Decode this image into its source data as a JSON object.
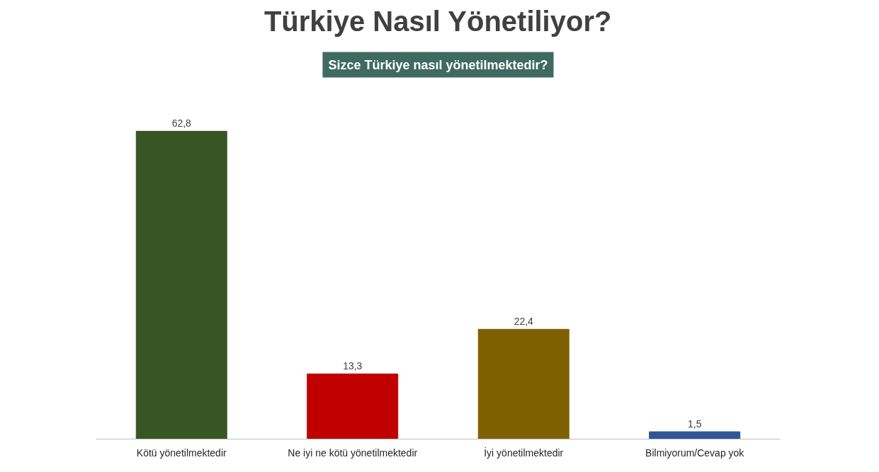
{
  "chart_data": {
    "type": "bar",
    "title": "Türkiye Nasıl Yönetiliyor?",
    "subtitle": "Sizce Türkiye nasıl yönetilmektedir?",
    "categories": [
      "Kötü yönetilmektedir",
      "Ne iyi ne kötü yönetilmektedir",
      "İyi yönetilmektedir",
      "Bilmiyorum/Cevap yok"
    ],
    "values": [
      62.8,
      13.3,
      22.4,
      1.5
    ],
    "colors": [
      "#375623",
      "#c00000",
      "#7f6000",
      "#2f5597"
    ],
    "value_labels": [
      "62,8",
      "13,3",
      "22,4",
      "1,5"
    ],
    "grid": false
  }
}
